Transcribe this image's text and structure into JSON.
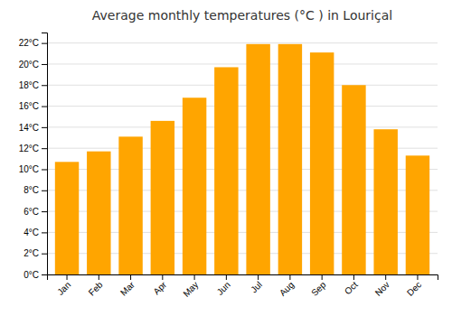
{
  "chart_data": {
    "type": "bar",
    "title": "Average monthly temperatures (°C ) in Louriçal",
    "categories": [
      "Jan",
      "Feb",
      "Mar",
      "Apr",
      "May",
      "Jun",
      "Jul",
      "Aug",
      "Sep",
      "Oct",
      "Nov",
      "Dec"
    ],
    "values": [
      10.7,
      11.7,
      13.1,
      14.6,
      16.8,
      19.7,
      21.9,
      21.9,
      21.1,
      18.0,
      13.8,
      11.3
    ],
    "color": "#FFA500",
    "ylim": [
      0,
      23
    ],
    "yticks": [
      {
        "value": 0,
        "label": "0°C"
      },
      {
        "value": 2,
        "label": "2°C"
      },
      {
        "value": 4,
        "label": "4°C"
      },
      {
        "value": 6,
        "label": "6°C"
      },
      {
        "value": 8,
        "label": "8°C"
      },
      {
        "value": 10,
        "label": "10°C"
      },
      {
        "value": 12,
        "label": "12°C"
      },
      {
        "value": 14,
        "label": "14°C"
      },
      {
        "value": 16,
        "label": "16°C"
      },
      {
        "value": 18,
        "label": "18°C"
      },
      {
        "value": 20,
        "label": "20°C"
      },
      {
        "value": 22,
        "label": "22°C"
      }
    ],
    "grid": true
  }
}
